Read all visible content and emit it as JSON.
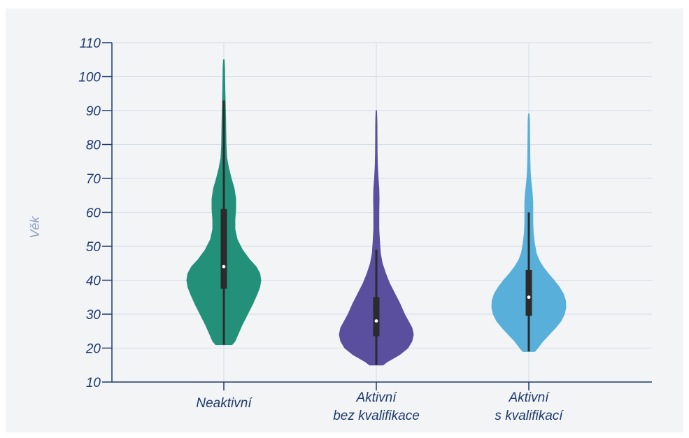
{
  "chart_data": {
    "type": "violin",
    "ylabel": "Věk",
    "ylim": [
      10,
      110
    ],
    "yticks": [
      10,
      20,
      30,
      40,
      50,
      60,
      70,
      80,
      90,
      100,
      110
    ],
    "grid": true,
    "categories": [
      {
        "label_lines": [
          "Neaktivní"
        ],
        "color": "#23907a",
        "min": 21,
        "max": 105,
        "q1": 37.5,
        "median": 44,
        "q3": 61,
        "whisker_low": 21,
        "whisker_high": 93,
        "density": [
          [
            21,
            0.22
          ],
          [
            22,
            0.3
          ],
          [
            24,
            0.38
          ],
          [
            27,
            0.5
          ],
          [
            30,
            0.64
          ],
          [
            33,
            0.78
          ],
          [
            36,
            0.9
          ],
          [
            38,
            0.97
          ],
          [
            40,
            1.0
          ],
          [
            42,
            0.97
          ],
          [
            44,
            0.87
          ],
          [
            46,
            0.7
          ],
          [
            49,
            0.5
          ],
          [
            52,
            0.36
          ],
          [
            55,
            0.3
          ],
          [
            58,
            0.3
          ],
          [
            61,
            0.32
          ],
          [
            64,
            0.32
          ],
          [
            67,
            0.28
          ],
          [
            70,
            0.2
          ],
          [
            73,
            0.13
          ],
          [
            76,
            0.08
          ],
          [
            80,
            0.06
          ],
          [
            84,
            0.055
          ],
          [
            88,
            0.05
          ],
          [
            92,
            0.04
          ],
          [
            96,
            0.03
          ],
          [
            100,
            0.025
          ],
          [
            103,
            0.02
          ],
          [
            105,
            0.01
          ]
        ]
      },
      {
        "label_lines": [
          "Aktivní",
          "bez kvalifikace"
        ],
        "color": "#5a4e9e",
        "min": 15,
        "max": 90,
        "q1": 23.5,
        "median": 28,
        "q3": 35,
        "whisker_low": 15,
        "whisker_high": 49,
        "density": [
          [
            15,
            0.18
          ],
          [
            16,
            0.3
          ],
          [
            18,
            0.62
          ],
          [
            20,
            0.85
          ],
          [
            22,
            0.96
          ],
          [
            24,
            1.0
          ],
          [
            26,
            0.96
          ],
          [
            28,
            0.86
          ],
          [
            30,
            0.76
          ],
          [
            33,
            0.64
          ],
          [
            36,
            0.5
          ],
          [
            39,
            0.36
          ],
          [
            42,
            0.25
          ],
          [
            45,
            0.16
          ],
          [
            48,
            0.11
          ],
          [
            51,
            0.09
          ],
          [
            55,
            0.07
          ],
          [
            60,
            0.07
          ],
          [
            64,
            0.075
          ],
          [
            67,
            0.07
          ],
          [
            70,
            0.05
          ],
          [
            74,
            0.03
          ],
          [
            78,
            0.022
          ],
          [
            82,
            0.02
          ],
          [
            86,
            0.018
          ],
          [
            88,
            0.015
          ],
          [
            90,
            0.008
          ]
        ]
      },
      {
        "label_lines": [
          "Aktivní",
          "s kvalifikací"
        ],
        "color": "#58afd9",
        "min": 19,
        "max": 89,
        "q1": 29.5,
        "median": 35,
        "q3": 43,
        "whisker_low": 19,
        "whisker_high": 60,
        "density": [
          [
            19,
            0.16
          ],
          [
            20,
            0.24
          ],
          [
            22,
            0.38
          ],
          [
            24,
            0.55
          ],
          [
            26,
            0.72
          ],
          [
            28,
            0.87
          ],
          [
            30,
            0.96
          ],
          [
            32,
            1.0
          ],
          [
            34,
            0.99
          ],
          [
            36,
            0.93
          ],
          [
            38,
            0.82
          ],
          [
            40,
            0.68
          ],
          [
            42,
            0.52
          ],
          [
            44,
            0.38
          ],
          [
            46,
            0.27
          ],
          [
            48,
            0.2
          ],
          [
            51,
            0.15
          ],
          [
            54,
            0.12
          ],
          [
            57,
            0.11
          ],
          [
            60,
            0.11
          ],
          [
            63,
            0.11
          ],
          [
            66,
            0.09
          ],
          [
            69,
            0.06
          ],
          [
            72,
            0.04
          ],
          [
            76,
            0.03
          ],
          [
            80,
            0.027
          ],
          [
            84,
            0.023
          ],
          [
            87,
            0.02
          ],
          [
            89,
            0.01
          ]
        ]
      }
    ]
  }
}
